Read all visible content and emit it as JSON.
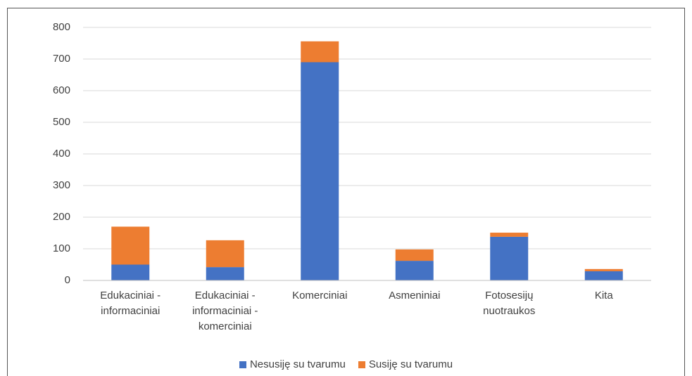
{
  "chart_data": {
    "type": "stacked_bar",
    "categories": [
      "Edukaciniai - informaciniai",
      "Edukaciniai - informaciniai - komerciniai",
      "Komerciniai",
      "Asmeniniai",
      "Fotosesijų nuotraukos",
      "Kita"
    ],
    "series": [
      {
        "name": "Nesusiję su tvarumu",
        "color": "#4472c4",
        "values": [
          50,
          42,
          690,
          62,
          138,
          29
        ]
      },
      {
        "name": "Susiję su tvarumu",
        "color": "#ed7d31",
        "values": [
          120,
          85,
          66,
          36,
          13,
          7
        ]
      }
    ],
    "ylim": [
      0,
      800
    ],
    "yticks": [
      0,
      100,
      200,
      300,
      400,
      500,
      600,
      700,
      800
    ],
    "grid": true,
    "legend": "bottom"
  }
}
